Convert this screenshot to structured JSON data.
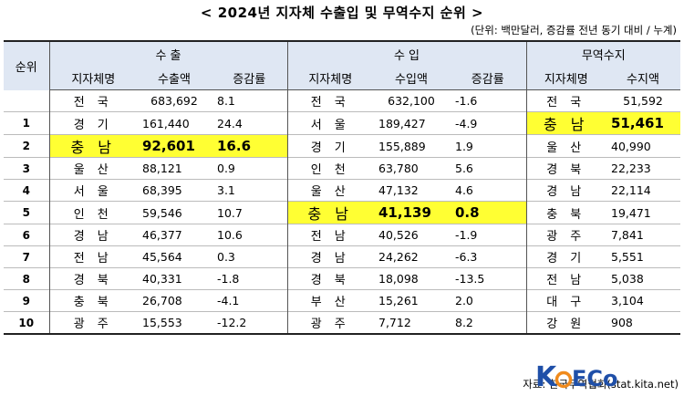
{
  "title": "< 2024년 지자체 수출입 및 무역수지 순위 >",
  "unit_note": "(단위: 백만달러, 증감률 전년 동기 대비 / 누계)",
  "headers": {
    "rank": "순위",
    "export": "수    출",
    "import": "수    입",
    "balance": "무역수지",
    "region": "지자체명",
    "export_amount": "수출액",
    "growth": "증감률",
    "import_amount": "수입액",
    "balance_amount": "수지액"
  },
  "rows": [
    {
      "rank": "",
      "ex_name": "전 국",
      "ex_amt": "683,692",
      "ex_rate": "8.1",
      "im_name": "전 국",
      "im_amt": "632,100",
      "im_rate": "-1.6",
      "bal_name": "전 국",
      "bal_amt": "51,592"
    },
    {
      "rank": "1",
      "ex_name": "경 기",
      "ex_amt": "161,440",
      "ex_rate": "24.4",
      "im_name": "서 울",
      "im_amt": "189,427",
      "im_rate": "-4.9",
      "bal_name": "충 남",
      "bal_amt": "51,461"
    },
    {
      "rank": "2",
      "ex_name": "충 남",
      "ex_amt": "92,601",
      "ex_rate": "16.6",
      "im_name": "경 기",
      "im_amt": "155,889",
      "im_rate": "1.9",
      "bal_name": "울 산",
      "bal_amt": "40,990"
    },
    {
      "rank": "3",
      "ex_name": "울 산",
      "ex_amt": "88,121",
      "ex_rate": "0.9",
      "im_name": "인 천",
      "im_amt": "63,780",
      "im_rate": "5.6",
      "bal_name": "경 북",
      "bal_amt": "22,233"
    },
    {
      "rank": "4",
      "ex_name": "서 울",
      "ex_amt": "68,395",
      "ex_rate": "3.1",
      "im_name": "울 산",
      "im_amt": "47,132",
      "im_rate": "4.6",
      "bal_name": "경 남",
      "bal_amt": "22,114"
    },
    {
      "rank": "5",
      "ex_name": "인 천",
      "ex_amt": "59,546",
      "ex_rate": "10.7",
      "im_name": "충 남",
      "im_amt": "41,139",
      "im_rate": "0.8",
      "bal_name": "충 북",
      "bal_amt": "19,471"
    },
    {
      "rank": "6",
      "ex_name": "경 남",
      "ex_amt": "46,377",
      "ex_rate": "10.6",
      "im_name": "전 남",
      "im_amt": "40,526",
      "im_rate": "-1.9",
      "bal_name": "광 주",
      "bal_amt": "7,841"
    },
    {
      "rank": "7",
      "ex_name": "전 남",
      "ex_amt": "45,564",
      "ex_rate": "0.3",
      "im_name": "경 남",
      "im_amt": "24,262",
      "im_rate": "-6.3",
      "bal_name": "경 기",
      "bal_amt": "5,551"
    },
    {
      "rank": "8",
      "ex_name": "경 북",
      "ex_amt": "40,331",
      "ex_rate": "-1.8",
      "im_name": "경 북",
      "im_amt": "18,098",
      "im_rate": "-13.5",
      "bal_name": "전 남",
      "bal_amt": "5,038"
    },
    {
      "rank": "9",
      "ex_name": "충 북",
      "ex_amt": "26,708",
      "ex_rate": "-4.1",
      "im_name": "부 산",
      "im_amt": "15,261",
      "im_rate": "2.0",
      "bal_name": "대 구",
      "bal_amt": "3,104"
    },
    {
      "rank": "10",
      "ex_name": "광 주",
      "ex_amt": "15,553",
      "ex_rate": "-12.2",
      "im_name": "광 주",
      "im_amt": "7,712",
      "im_rate": "8.2",
      "bal_name": "강 원",
      "bal_amt": "908"
    }
  ],
  "source": "자료: 한국무역협회(stat.kita.net)",
  "logo": {
    "text_k": "K",
    "text_o": "o",
    "text_eco": "ECo",
    "colors": {
      "blue": "#1f4fa8",
      "orange": "#f08a1c"
    }
  },
  "colors": {
    "header_bg": "#dfe7f3",
    "highlight": "#ffff33"
  }
}
